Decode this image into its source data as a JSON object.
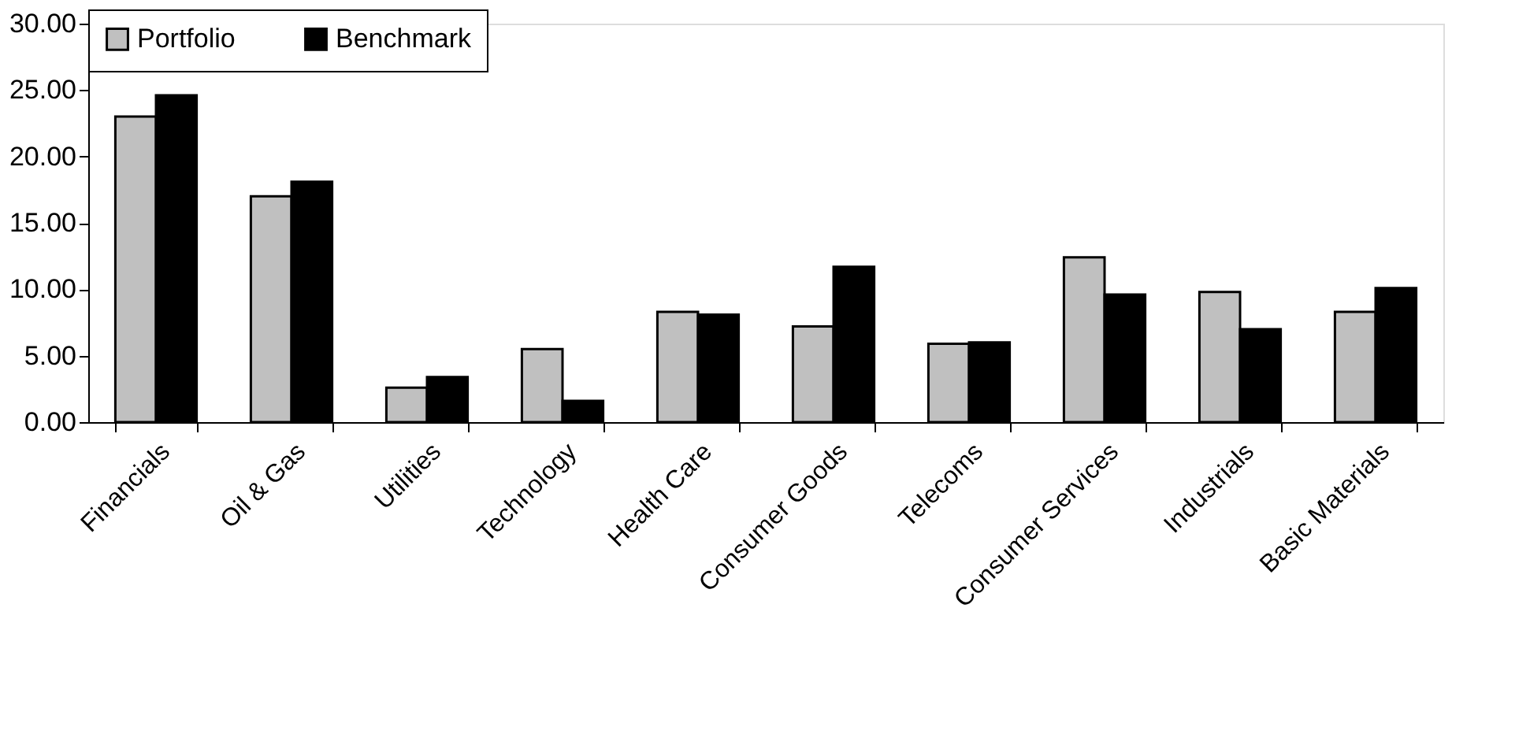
{
  "chart_data": {
    "type": "bar",
    "categories": [
      "Financials",
      "Oil & Gas",
      "Utilities",
      "Technology",
      "Health Care",
      "Consumer Goods",
      "Telecoms",
      "Consumer Services",
      "Industrials",
      "Basic Materials"
    ],
    "series": [
      {
        "name": "Portfolio",
        "color": "#c0c0c0",
        "values": [
          23.0,
          17.0,
          2.6,
          5.5,
          8.3,
          7.2,
          5.9,
          12.4,
          9.8,
          8.3
        ]
      },
      {
        "name": "Benchmark",
        "color": "#000000",
        "values": [
          24.6,
          18.1,
          3.4,
          1.6,
          8.1,
          11.7,
          6.0,
          9.6,
          7.0,
          10.1
        ]
      }
    ],
    "ylim": [
      0,
      30
    ],
    "yticks": [
      {
        "value": 0,
        "label": "0.00"
      },
      {
        "value": 5,
        "label": "5.00"
      },
      {
        "value": 10,
        "label": "10.00"
      },
      {
        "value": 15,
        "label": "15.00"
      },
      {
        "value": 20,
        "label": "20.00"
      },
      {
        "value": 25,
        "label": "25.00"
      },
      {
        "value": 30,
        "label": "30.00"
      }
    ],
    "grid": false,
    "legend": "top"
  }
}
